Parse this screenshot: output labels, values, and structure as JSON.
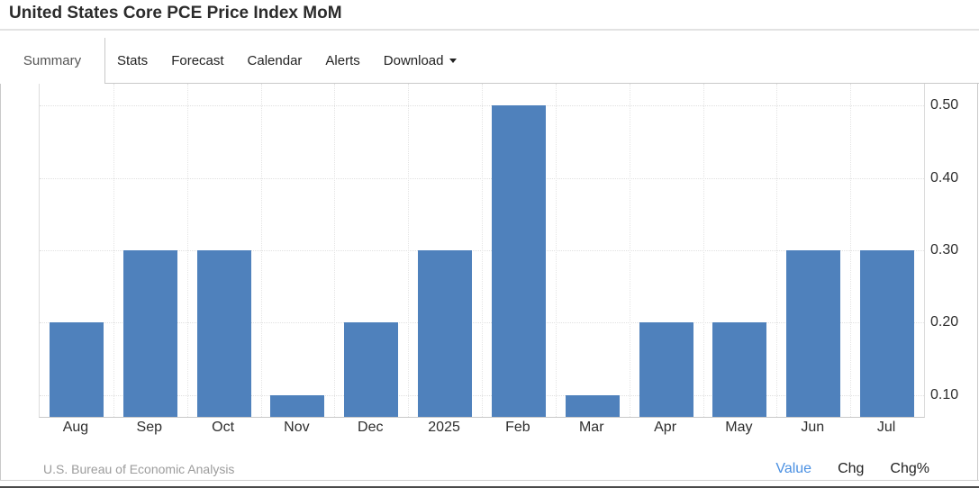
{
  "page": {
    "title": "United States Core PCE Price Index MoM"
  },
  "tabs": {
    "items": [
      {
        "label": "Summary",
        "active": true
      },
      {
        "label": "Stats"
      },
      {
        "label": "Forecast"
      },
      {
        "label": "Calendar"
      },
      {
        "label": "Alerts"
      },
      {
        "label": "Download",
        "has_caret": true
      }
    ]
  },
  "chart_data": {
    "type": "bar",
    "title": "United States Core PCE Price Index MoM",
    "categories": [
      "Aug",
      "Sep",
      "Oct",
      "Nov",
      "Dec",
      "2025",
      "Feb",
      "Mar",
      "Apr",
      "May",
      "Jun",
      "Jul"
    ],
    "values": [
      0.2,
      0.3,
      0.3,
      0.1,
      0.2,
      0.3,
      0.5,
      0.1,
      0.2,
      0.2,
      0.3,
      0.3
    ],
    "xlabel": "",
    "ylabel": "",
    "yticks": [
      0.1,
      0.2,
      0.3,
      0.4,
      0.5
    ],
    "ytick_labels": [
      "0.10",
      "0.20",
      "0.30",
      "0.40",
      "0.50"
    ],
    "ylim": [
      0.07,
      0.53
    ],
    "yaxis_position": "right",
    "grid": "dotted",
    "bar_color": "#4f81bc",
    "legend": "none"
  },
  "footer": {
    "source": "U.S. Bureau of Economic Analysis",
    "links": [
      {
        "label": "Value",
        "active": true,
        "color": "#4a90e2"
      },
      {
        "label": "Chg"
      },
      {
        "label": "Chg%"
      }
    ]
  },
  "colors": {
    "bar": "#4f81bc",
    "active_link": "#4a90e2",
    "panel_border": "#c9c9c9",
    "gridline": "#e0e0e0",
    "text": "#2e2e2e",
    "muted_text": "#9c9c9c"
  }
}
